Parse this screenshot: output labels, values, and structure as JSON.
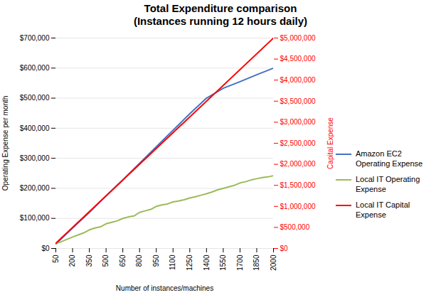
{
  "chart_data": {
    "type": "line",
    "title": "Total Expenditure comparison",
    "subtitle": "(Instances  running 12 hours daily)",
    "xlabel": "Number of instances/machines",
    "ylabel": "Operating Expense per month",
    "y2label": "Capital Expense",
    "xlim": [
      50,
      2000
    ],
    "xticks": [
      50,
      200,
      350,
      500,
      650,
      800,
      950,
      1100,
      1250,
      1400,
      1550,
      1700,
      1850,
      2000
    ],
    "ylim": [
      0,
      700000
    ],
    "yticks": [
      {
        "value": 0,
        "label": "$0"
      },
      {
        "value": 100000,
        "label": "$100,000"
      },
      {
        "value": 200000,
        "label": "$200,000"
      },
      {
        "value": 300000,
        "label": "$300,000"
      },
      {
        "value": 400000,
        "label": "$400,000"
      },
      {
        "value": 500000,
        "label": "$500,000"
      },
      {
        "value": 600000,
        "label": "$600,000"
      },
      {
        "value": 700000,
        "label": "$700,000"
      }
    ],
    "y2lim": [
      0,
      5000000
    ],
    "y2ticks": [
      {
        "value": 0,
        "label": "$0"
      },
      {
        "value": 500000,
        "label": "$500,000"
      },
      {
        "value": 1000000,
        "label": "$1,000,000"
      },
      {
        "value": 1500000,
        "label": "$1,500,000"
      },
      {
        "value": 2000000,
        "label": "$2,000,000"
      },
      {
        "value": 2500000,
        "label": "$2,500,000"
      },
      {
        "value": 3000000,
        "label": "$3,000,000"
      },
      {
        "value": 3500000,
        "label": "$3,500,000"
      },
      {
        "value": 4000000,
        "label": "$4,000,000"
      },
      {
        "value": 4500000,
        "label": "$4,500,000"
      },
      {
        "value": 5000000,
        "label": "$5,000,000"
      }
    ],
    "grid": true,
    "legend": "right",
    "series": [
      {
        "name": "Amazon EC2\nOperating Expense",
        "color": "#4472C4",
        "x": [
          50,
          200,
          350,
          500,
          650,
          800,
          950,
          1100,
          1250,
          1400,
          1550,
          1700,
          1850,
          2000
        ],
        "values": [
          15000,
          68000,
          120000,
          175000,
          228000,
          283000,
          338000,
          393000,
          448000,
          500000,
          533000,
          555000,
          578000,
          600000
        ]
      },
      {
        "name": "Local IT Operating\nExpense",
        "color": "#9BBB59",
        "x": [
          50,
          200,
          250,
          300,
          350,
          400,
          450,
          500,
          550,
          600,
          650,
          700,
          750,
          800,
          850,
          900,
          950,
          1000,
          1050,
          1100,
          1150,
          1200,
          1250,
          1300,
          1350,
          1400,
          1450,
          1500,
          1550,
          1600,
          1650,
          1700,
          1750,
          1800,
          1850,
          1900,
          1950,
          2000
        ],
        "values": [
          15000,
          38000,
          45000,
          52000,
          62000,
          68000,
          72000,
          82000,
          87000,
          92000,
          100000,
          105000,
          108000,
          120000,
          125000,
          130000,
          140000,
          145000,
          148000,
          155000,
          158000,
          162000,
          168000,
          172000,
          177000,
          182000,
          188000,
          195000,
          200000,
          205000,
          210000,
          218000,
          222000,
          228000,
          232000,
          236000,
          238000,
          242000
        ]
      },
      {
        "name": "Local IT Capital\nExpense",
        "color": "#FF0000",
        "axis": "y2",
        "x": [
          50,
          2000
        ],
        "values": [
          125000,
          5000000
        ]
      }
    ]
  }
}
